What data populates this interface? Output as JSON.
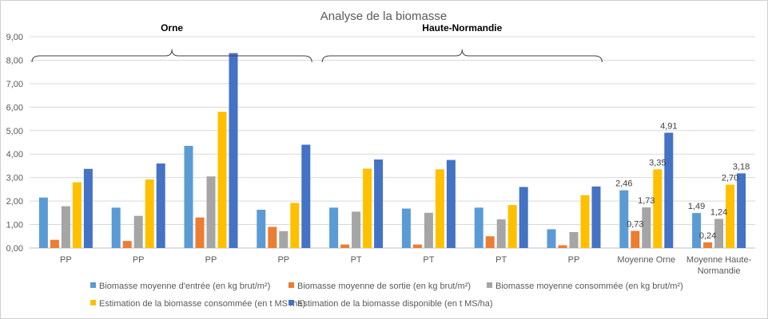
{
  "chart_data": {
    "type": "bar",
    "title": "Analyse de la biomasse",
    "xlabel": "",
    "ylabel": "",
    "ylim": [
      0,
      9
    ],
    "yticks": [
      "0,00",
      "1,00",
      "2,00",
      "3,00",
      "4,00",
      "5,00",
      "6,00",
      "7,00",
      "8,00",
      "9,00"
    ],
    "grid": true,
    "legend_position": "bottom",
    "categories": [
      {
        "line1": "PP",
        "line2": ""
      },
      {
        "line1": "PP",
        "line2": ""
      },
      {
        "line1": "PP",
        "line2": ""
      },
      {
        "line1": "PP",
        "line2": ""
      },
      {
        "line1": "PT",
        "line2": ""
      },
      {
        "line1": "PT",
        "line2": ""
      },
      {
        "line1": "PT",
        "line2": ""
      },
      {
        "line1": "PP",
        "line2": ""
      },
      {
        "line1": "Moyenne Orne",
        "line2": ""
      },
      {
        "line1": "Moyenne Haute-",
        "line2": "Normandie"
      }
    ],
    "groups": [
      {
        "label": "Orne",
        "from": 0,
        "to": 3
      },
      {
        "label": "Haute-Normandie",
        "from": 4,
        "to": 7
      }
    ],
    "series": [
      {
        "name": "Biomasse moyenne d'entrée (en kg brut/m²)",
        "color": "#5B9BD5",
        "values": [
          2.15,
          1.72,
          4.35,
          1.63,
          1.72,
          1.68,
          1.72,
          0.8,
          2.46,
          1.49
        ],
        "labels": [
          "",
          "",
          "",
          "",
          "",
          "",
          "",
          "",
          "2,46",
          "1,49"
        ]
      },
      {
        "name": "Biomasse moyenne de sortie (en kg brut/m²)",
        "color": "#ED7D31",
        "values": [
          0.35,
          0.3,
          1.3,
          0.9,
          0.15,
          0.15,
          0.5,
          0.12,
          0.73,
          0.24
        ],
        "labels": [
          "",
          "",
          "",
          "",
          "",
          "",
          "",
          "",
          "0,73",
          "0,24"
        ]
      },
      {
        "name": "Biomasse moyenne consommée (en kg brut/m²)",
        "color": "#A5A5A5",
        "values": [
          1.78,
          1.37,
          3.05,
          0.72,
          1.55,
          1.5,
          1.22,
          0.68,
          1.73,
          1.24
        ],
        "labels": [
          "",
          "",
          "",
          "",
          "",
          "",
          "",
          "",
          "1,73",
          "1,24"
        ]
      },
      {
        "name": "Estimation de la biomasse consommée (en t MS /ha)",
        "color": "#FFC000",
        "values": [
          2.8,
          2.92,
          5.8,
          1.92,
          3.38,
          3.35,
          1.83,
          2.25,
          3.35,
          2.7
        ],
        "labels": [
          "",
          "",
          "",
          "",
          "",
          "",
          "",
          "",
          "3,35",
          "2,70"
        ]
      },
      {
        "name": "Estimation de la biomasse disponible (en t MS/ha)",
        "color": "#4472C4",
        "values": [
          3.37,
          3.6,
          8.3,
          4.4,
          3.77,
          3.75,
          2.6,
          2.62,
          4.91,
          3.18
        ],
        "labels": [
          "",
          "",
          "",
          "",
          "",
          "",
          "",
          "",
          "4,91",
          "3,18"
        ]
      }
    ]
  }
}
